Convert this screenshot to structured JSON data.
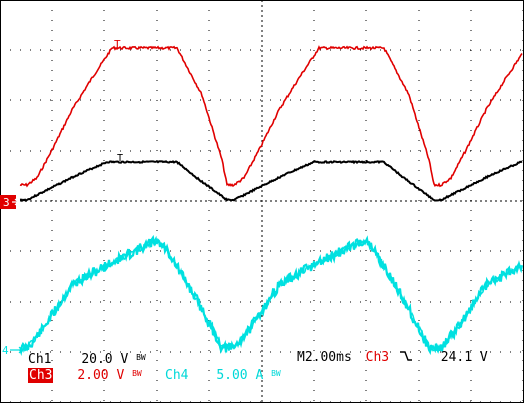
{
  "colors": {
    "background": "#ffffff",
    "grid": "#000000",
    "ch1": "#000000",
    "ch3": "#e00000",
    "ch4": "#00e0e0"
  },
  "markers": {
    "ch3_ground": "3",
    "ch4_ground": "4",
    "trigger_marker": "T"
  },
  "readouts": {
    "ch1_label": "Ch1",
    "ch1_scale": "20.0 V",
    "ch1_bw": "BW",
    "ch3_label": "Ch3",
    "ch3_scale": "2.00 V",
    "ch3_bw": "BW",
    "ch4_label": "Ch4",
    "ch4_scale": "5.00 A",
    "ch4_bw": "BW",
    "timebase": "M2.00ms",
    "trigger_source": "Ch3",
    "trigger_slope_icon": "falling-edge-icon",
    "trigger_level": "24.1 V"
  }
}
